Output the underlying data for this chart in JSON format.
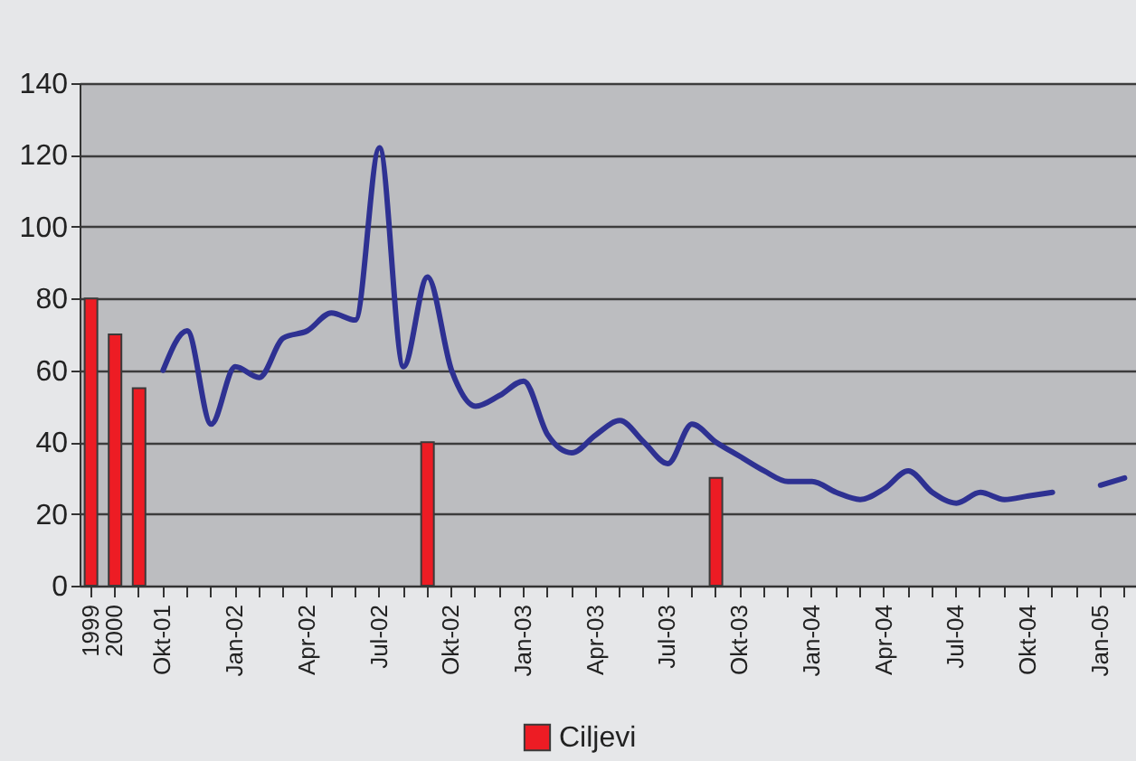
{
  "chart_data": {
    "type": "bar",
    "categories": [
      "1999",
      "2000",
      null,
      "Okt-01",
      null,
      null,
      "Jan-02",
      null,
      null,
      "Apr-02",
      null,
      null,
      "Jul-02",
      null,
      null,
      "Okt-02",
      null,
      null,
      "Jan-03",
      null,
      null,
      "Apr-03",
      null,
      null,
      "Jul-03",
      null,
      null,
      "Okt-03",
      null,
      null,
      "Jan-04",
      null,
      null,
      "Apr-04",
      null,
      null,
      "Jul-04",
      null,
      null,
      "Okt-04",
      null,
      null,
      "Jan-05",
      null
    ],
    "series": [
      {
        "name": "Ciljevi",
        "type": "bar",
        "color": "#ed1c24",
        "values": [
          80,
          70,
          55,
          null,
          null,
          null,
          null,
          null,
          null,
          null,
          null,
          null,
          null,
          null,
          40,
          null,
          null,
          null,
          null,
          null,
          null,
          null,
          null,
          null,
          null,
          null,
          30,
          null,
          null,
          null,
          null,
          null,
          null,
          null,
          null,
          null,
          null,
          null,
          null,
          null,
          null,
          null,
          null,
          null
        ]
      },
      {
        "type": "line",
        "color": "#2e3192",
        "values": [
          null,
          null,
          null,
          60,
          71,
          45,
          61,
          58,
          69,
          71,
          76,
          74,
          122,
          61,
          86,
          60,
          50,
          53,
          57,
          42,
          37,
          42,
          46,
          40,
          34,
          45,
          40,
          36,
          32,
          29,
          29,
          26,
          24,
          27,
          32,
          26,
          23,
          26,
          24,
          25,
          26,
          null,
          28,
          30
        ]
      }
    ],
    "ylim": [
      0,
      140
    ],
    "yticks": [
      0,
      20,
      40,
      60,
      80,
      100,
      120,
      140
    ],
    "grid": "y",
    "legend": "bottom"
  }
}
